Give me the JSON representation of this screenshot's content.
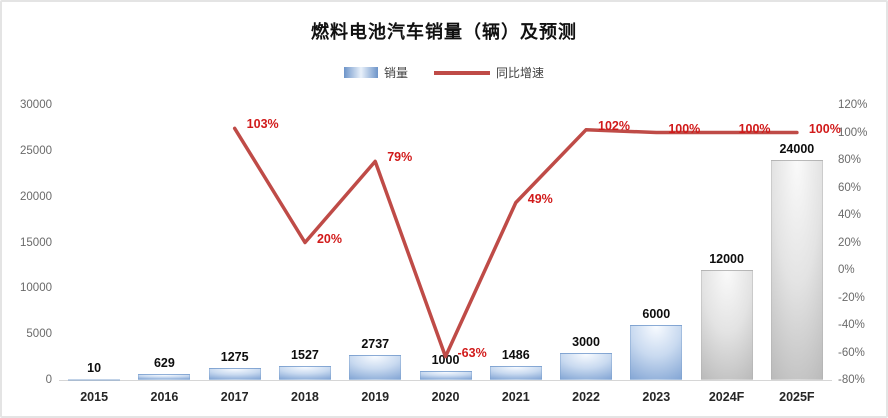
{
  "title": "燃料电池汽车销量（辆）及预测",
  "legend": {
    "bar_label": "销量",
    "line_label": "同比增速"
  },
  "chart_data": {
    "type": "bar+line",
    "title": "燃料电池汽车销量（辆）及预测",
    "categories": [
      "2015",
      "2016",
      "2017",
      "2018",
      "2019",
      "2020",
      "2021",
      "2022",
      "2023",
      "2024F",
      "2025F"
    ],
    "series": [
      {
        "name": "销量",
        "type": "bar",
        "axis": "left",
        "values": [
          10,
          629,
          1275,
          1527,
          2737,
          1000,
          1486,
          3000,
          6000,
          12000,
          24000
        ],
        "labels": [
          "10",
          "629",
          "1275",
          "1527",
          "2737",
          "1000",
          "1486",
          "3000",
          "6000",
          "12000",
          "24000"
        ],
        "forecast": [
          false,
          false,
          false,
          false,
          false,
          false,
          false,
          false,
          false,
          true,
          true
        ]
      },
      {
        "name": "同比增速",
        "type": "line",
        "axis": "right",
        "values": [
          null,
          null,
          103,
          20,
          79,
          -63,
          49,
          102,
          100,
          100,
          100
        ],
        "labels": [
          null,
          null,
          "103%",
          "20%",
          "79%",
          "-63%",
          "49%",
          "102%",
          "100%",
          "100%",
          "100%"
        ]
      }
    ],
    "left_axis": {
      "min": 0,
      "max": 30000,
      "step": 5000,
      "ticks": [
        "0",
        "5000",
        "10000",
        "15000",
        "20000",
        "25000",
        "30000"
      ]
    },
    "right_axis": {
      "min": -80,
      "max": 120,
      "step": 20,
      "ticks": [
        "-80%",
        "-60%",
        "-40%",
        "-20%",
        "0%",
        "20%",
        "40%",
        "60%",
        "80%",
        "100%",
        "120%"
      ]
    },
    "grid": "off",
    "legend_position": "top",
    "colors": {
      "bar_actual_dark": "#5c88c5",
      "bar_actual_light": "#f8fbff",
      "bar_forecast_dark": "#a2a2a2",
      "bar_forecast_light": "#fafafa",
      "line": "#bf4b47",
      "line_label": "#d11a1a",
      "bar_label": "#0d0d0d",
      "axis_text": "#6a6a6a"
    }
  }
}
